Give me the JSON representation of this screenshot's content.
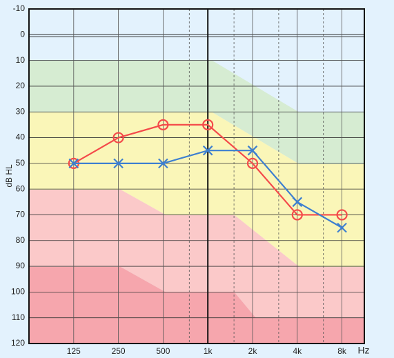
{
  "chart_data": {
    "type": "audiogram",
    "y_label": "dB HL",
    "x_unit": "Hz",
    "x": [
      125,
      250,
      500,
      1000,
      2000,
      4000,
      8000
    ],
    "xlim": [
      62.5,
      11314
    ],
    "xscale": "log",
    "xticks": [
      125,
      250,
      500,
      {
        "value": 1000,
        "label": "1k"
      },
      {
        "value": 2000,
        "label": "2k"
      },
      {
        "value": 4000,
        "label": "4k"
      },
      {
        "value": 8000,
        "label": "8k"
      }
    ],
    "xminor": [
      750,
      1500,
      3000,
      6000
    ],
    "ylim": [
      -10,
      120
    ],
    "y_inverted": true,
    "yticks": [
      -10,
      0,
      10,
      20,
      30,
      40,
      50,
      60,
      70,
      80,
      90,
      100,
      110,
      120
    ],
    "grid": true,
    "series": [
      {
        "color": "#f44a4a",
        "marker": "o",
        "values": [
          50,
          40,
          35,
          35,
          50,
          70,
          70
        ]
      },
      {
        "color": "#3d7fd0",
        "marker": "x",
        "values": [
          50,
          50,
          50,
          45,
          45,
          65,
          75
        ]
      }
    ]
  }
}
